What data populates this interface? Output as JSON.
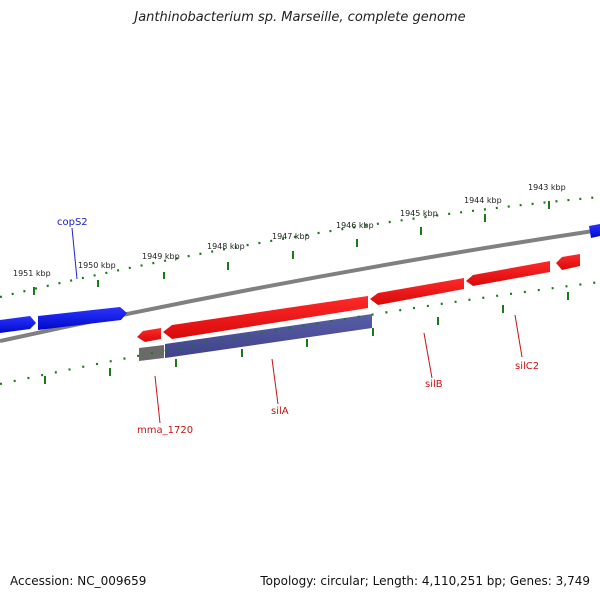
{
  "title": "Janthinobacterium sp. Marseille, complete genome",
  "accession": "Accession: NC_009659",
  "summary": "Topology: circular; Length: 4,110,251 bp; Genes: 3,749",
  "colors": {
    "background": "#ffffff",
    "backbone": "#808080",
    "tick": "#1a7a1a",
    "gene_blue": "#0a14e6",
    "gene_red": "#ee1111",
    "gene_purple": "#4a4e96",
    "gene_gray": "#6a6a6a",
    "label_blue": "#1a22c8",
    "label_red": "#c81414"
  },
  "scale_labels": [
    "1951 kbp",
    "1950 kbp",
    "1949 kbp",
    "1948 kbp",
    "1947 kbp",
    "1946 kbp",
    "1945 kbp",
    "1944 kbp",
    "1943 kbp"
  ],
  "genes": {
    "copS2": "copS2",
    "mma_1720": "mma_1720",
    "silA": "silA",
    "silB": "silB",
    "silC2": "silC2"
  }
}
